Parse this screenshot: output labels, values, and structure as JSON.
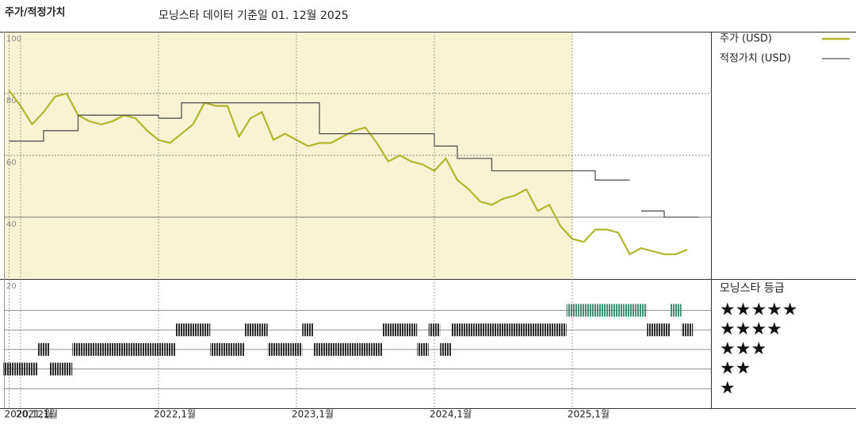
{
  "chart_data": [
    {
      "type": "line",
      "title": "주가/적정가치",
      "subtitle": "모닝스타 데이터 기준일 01. 12월 2025",
      "x": [
        "2020-12",
        "2021-01",
        "2021-02",
        "2021-03",
        "2021-04",
        "2021-05",
        "2021-06",
        "2021-07",
        "2021-08",
        "2021-09",
        "2021-10",
        "2021-11",
        "2021-12",
        "2022-01",
        "2022-02",
        "2022-03",
        "2022-04",
        "2022-05",
        "2022-06",
        "2022-07",
        "2022-08",
        "2022-09",
        "2022-10",
        "2022-11",
        "2022-12",
        "2023-01",
        "2023-02",
        "2023-03",
        "2023-04",
        "2023-05",
        "2023-06",
        "2023-07",
        "2023-08",
        "2023-09",
        "2023-10",
        "2023-11",
        "2023-12",
        "2024-01",
        "2024-02",
        "2024-03",
        "2024-04",
        "2024-05",
        "2024-06",
        "2024-07",
        "2024-08",
        "2024-09",
        "2024-10",
        "2024-11",
        "2024-12",
        "2025-01",
        "2025-02",
        "2025-03",
        "2025-04",
        "2025-05",
        "2025-06",
        "2025-07",
        "2025-08",
        "2025-09",
        "2025-10",
        "2025-11"
      ],
      "series": [
        {
          "name": "주가 (USD)",
          "color": "#b3b52a",
          "values": [
            81,
            76,
            70,
            74,
            79,
            80,
            73,
            71,
            70,
            71,
            73,
            72,
            68,
            65,
            64,
            67,
            70,
            77,
            76,
            76,
            66,
            72,
            74,
            65,
            67,
            65,
            63,
            64,
            64,
            66,
            68,
            69,
            64,
            58,
            60,
            58,
            57,
            55,
            59,
            52,
            49,
            45,
            44,
            46,
            47,
            49,
            42,
            44,
            37,
            33,
            32,
            36,
            36,
            35,
            28,
            30,
            29,
            28,
            28,
            29.5
          ]
        },
        {
          "name": "적정가치 (USD)",
          "color": "#555555",
          "step": true,
          "values": [
            64.6,
            64.6,
            64.6,
            68,
            68,
            68,
            73,
            73,
            73,
            73,
            73,
            73,
            73,
            72,
            72,
            77,
            77,
            77,
            77,
            77,
            77,
            77,
            77,
            77,
            77,
            77,
            77,
            67,
            67,
            67,
            67,
            67,
            67,
            67,
            67,
            67,
            67,
            63,
            63,
            59,
            59,
            59,
            55,
            55,
            55,
            55,
            55,
            55,
            55,
            55,
            55,
            52,
            52,
            52,
            null,
            42,
            42,
            40,
            40,
            40
          ]
        }
      ],
      "ylim": [
        20,
        100
      ],
      "yticks": [
        20,
        40,
        60,
        80,
        100
      ],
      "grid": true
    },
    {
      "type": "rating",
      "legend_title": "모닝스타 등급",
      "x": [
        "2020-12",
        "2021-01",
        "2021-02",
        "2021-03",
        "2021-04",
        "2021-05",
        "2021-06",
        "2021-07",
        "2021-08",
        "2021-09",
        "2021-10",
        "2021-11",
        "2021-12",
        "2022-01",
        "2022-02",
        "2022-03",
        "2022-04",
        "2022-05",
        "2022-06",
        "2022-07",
        "2022-08",
        "2022-09",
        "2022-10",
        "2022-11",
        "2022-12",
        "2023-01",
        "2023-02",
        "2023-03",
        "2023-04",
        "2023-05",
        "2023-06",
        "2023-07",
        "2023-08",
        "2023-09",
        "2023-10",
        "2023-11",
        "2023-12",
        "2024-01",
        "2024-02",
        "2024-03",
        "2024-04",
        "2024-05",
        "2024-06",
        "2024-07",
        "2024-08",
        "2024-09",
        "2024-10",
        "2024-11",
        "2024-12",
        "2025-01",
        "2025-02",
        "2025-03",
        "2025-04",
        "2025-05",
        "2025-06",
        "2025-07",
        "2025-08",
        "2025-09",
        "2025-10",
        "2025-11"
      ],
      "values": [
        2,
        2,
        2,
        3,
        2,
        2,
        3,
        3,
        3,
        3,
        3,
        3,
        3,
        3,
        3,
        4,
        4,
        4,
        3,
        3,
        3,
        4,
        4,
        3,
        3,
        3,
        4,
        3,
        3,
        3,
        3,
        3,
        3,
        4,
        4,
        4,
        3,
        4,
        3,
        4,
        4,
        4,
        4,
        4,
        4,
        4,
        4,
        4,
        4,
        5,
        5,
        5,
        5,
        5,
        5,
        5,
        4,
        4,
        5,
        4
      ],
      "color": "#2b2b2b",
      "highlight_color": "#3e8e74",
      "highlight_value": 5,
      "ylim": [
        0,
        6.6
      ],
      "yticks": [
        {
          "value": 5,
          "label": "★★★★★"
        },
        {
          "value": 4,
          "label": "★★★★"
        },
        {
          "value": 3,
          "label": "★★★"
        },
        {
          "value": 2,
          "label": "★★"
        },
        {
          "value": 1,
          "label": "★"
        }
      ],
      "xticks": [
        {
          "value": "2020-12",
          "label": "2020,12월"
        },
        {
          "value": "2021-01",
          "label": "2021,1월"
        },
        {
          "value": "2022-01",
          "label": "2022,1월"
        },
        {
          "value": "2023-01",
          "label": "2023,1월"
        },
        {
          "value": "2024-01",
          "label": "2024,1월"
        },
        {
          "value": "2025-01",
          "label": "2025,1월"
        }
      ]
    }
  ]
}
